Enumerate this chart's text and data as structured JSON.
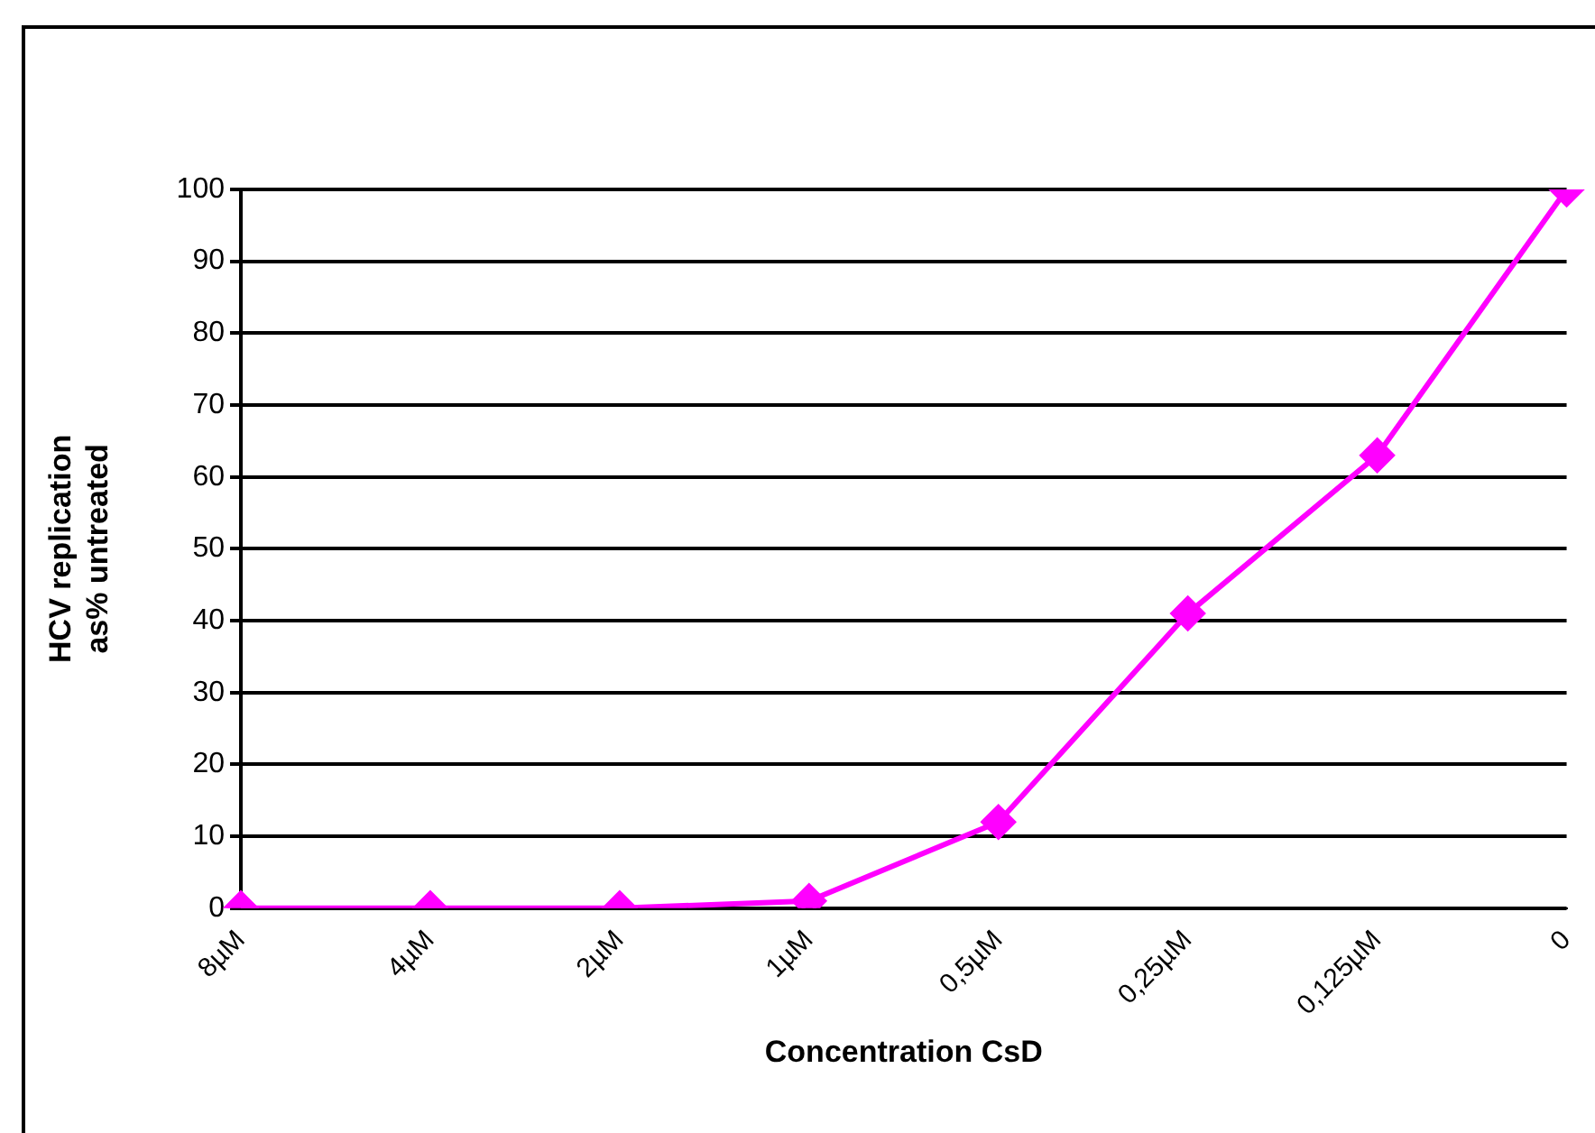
{
  "chart_data": {
    "type": "line",
    "xlabel": "Concentration CsD",
    "ylabel": "HCV replication\nas% untreated",
    "categories": [
      "8µM",
      "4µM",
      "2µM",
      "1µM",
      "0,5µM",
      "0,25µM",
      "0,125µM",
      "0"
    ],
    "series": [
      {
        "color": "#ff00ff",
        "values": [
          0,
          0,
          0,
          1,
          12,
          41,
          63,
          100
        ]
      }
    ],
    "ylim": [
      0,
      100
    ],
    "yticks": [
      0,
      10,
      20,
      30,
      40,
      50,
      60,
      70,
      80,
      90,
      100
    ],
    "grid": "y",
    "legend": false,
    "marker": "diamond",
    "line_style": "solid"
  }
}
